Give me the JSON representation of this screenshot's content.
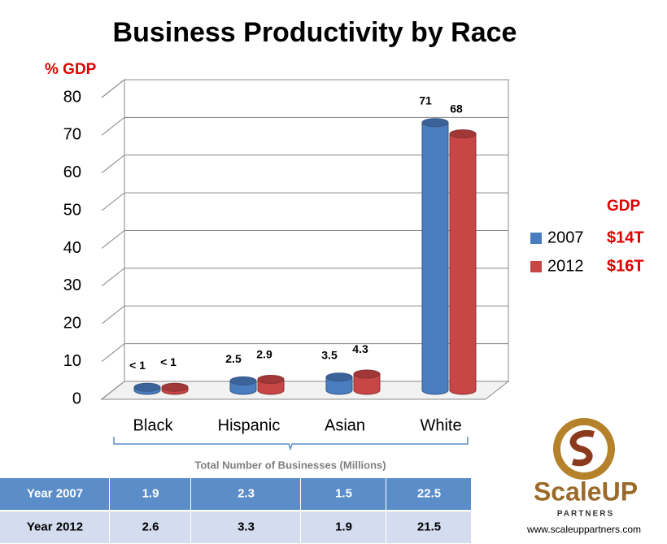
{
  "chart_data": {
    "type": "bar3d",
    "title": "Business Productivity by Race",
    "y_label": "% GDP",
    "categories": [
      "Black",
      "Hispanic",
      "Asian",
      "White"
    ],
    "series": [
      {
        "name": "2007",
        "color": "#4a7cc0",
        "values": [
          0.8,
          2.5,
          3.5,
          71
        ],
        "value_labels": [
          "< 1",
          "2.5",
          "3.5",
          "71"
        ]
      },
      {
        "name": "2012",
        "color": "#c84646",
        "values": [
          0.8,
          2.9,
          4.3,
          68
        ],
        "value_labels": [
          "< 1",
          "2.9",
          "4.3",
          "68"
        ]
      }
    ],
    "ylim": [
      0,
      80
    ],
    "yticks": [
      0,
      10,
      20,
      30,
      40,
      50,
      60,
      70,
      80
    ],
    "grid": true,
    "legend_title": "GDP",
    "legend_notes": [
      "$14T",
      "$16T"
    ],
    "x_note": "Total Number of Businesses (Millions)"
  },
  "table": {
    "rows": [
      [
        "Year 2007",
        1.9,
        2.3,
        1.5,
        22.5
      ],
      [
        "Year 2012",
        2.6,
        3.3,
        1.9,
        21.5
      ]
    ]
  },
  "logo": {
    "name": "ScaleUP",
    "sub": "PARTNERS",
    "url": "www.scaleuppartners.com"
  }
}
